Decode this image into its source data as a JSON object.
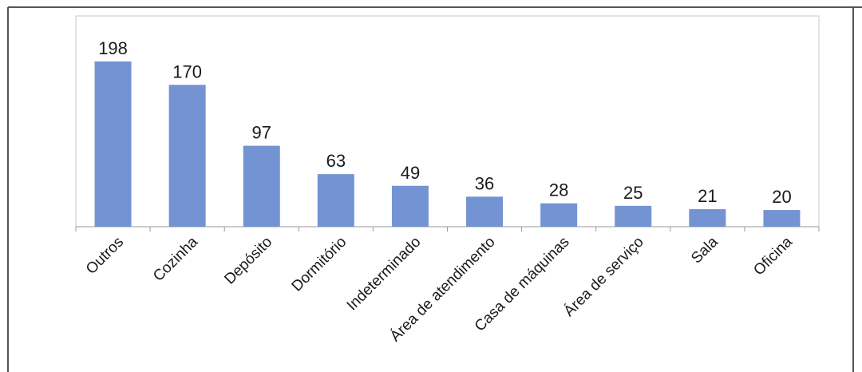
{
  "chart_data": {
    "type": "bar",
    "categories": [
      "Outros",
      "Cozinha",
      "Depósito",
      "Dormitório",
      "Indeterminado",
      "Área de atendimento",
      "Casa de máquinas",
      "Área de serviço",
      "Sala",
      "Oficina"
    ],
    "values": [
      198,
      170,
      97,
      63,
      49,
      36,
      28,
      25,
      21,
      20
    ],
    "title": "",
    "xlabel": "",
    "ylabel": "",
    "ylim": [
      0,
      198
    ],
    "grid": false,
    "legend": "none",
    "bar_color": "#7393d3"
  }
}
